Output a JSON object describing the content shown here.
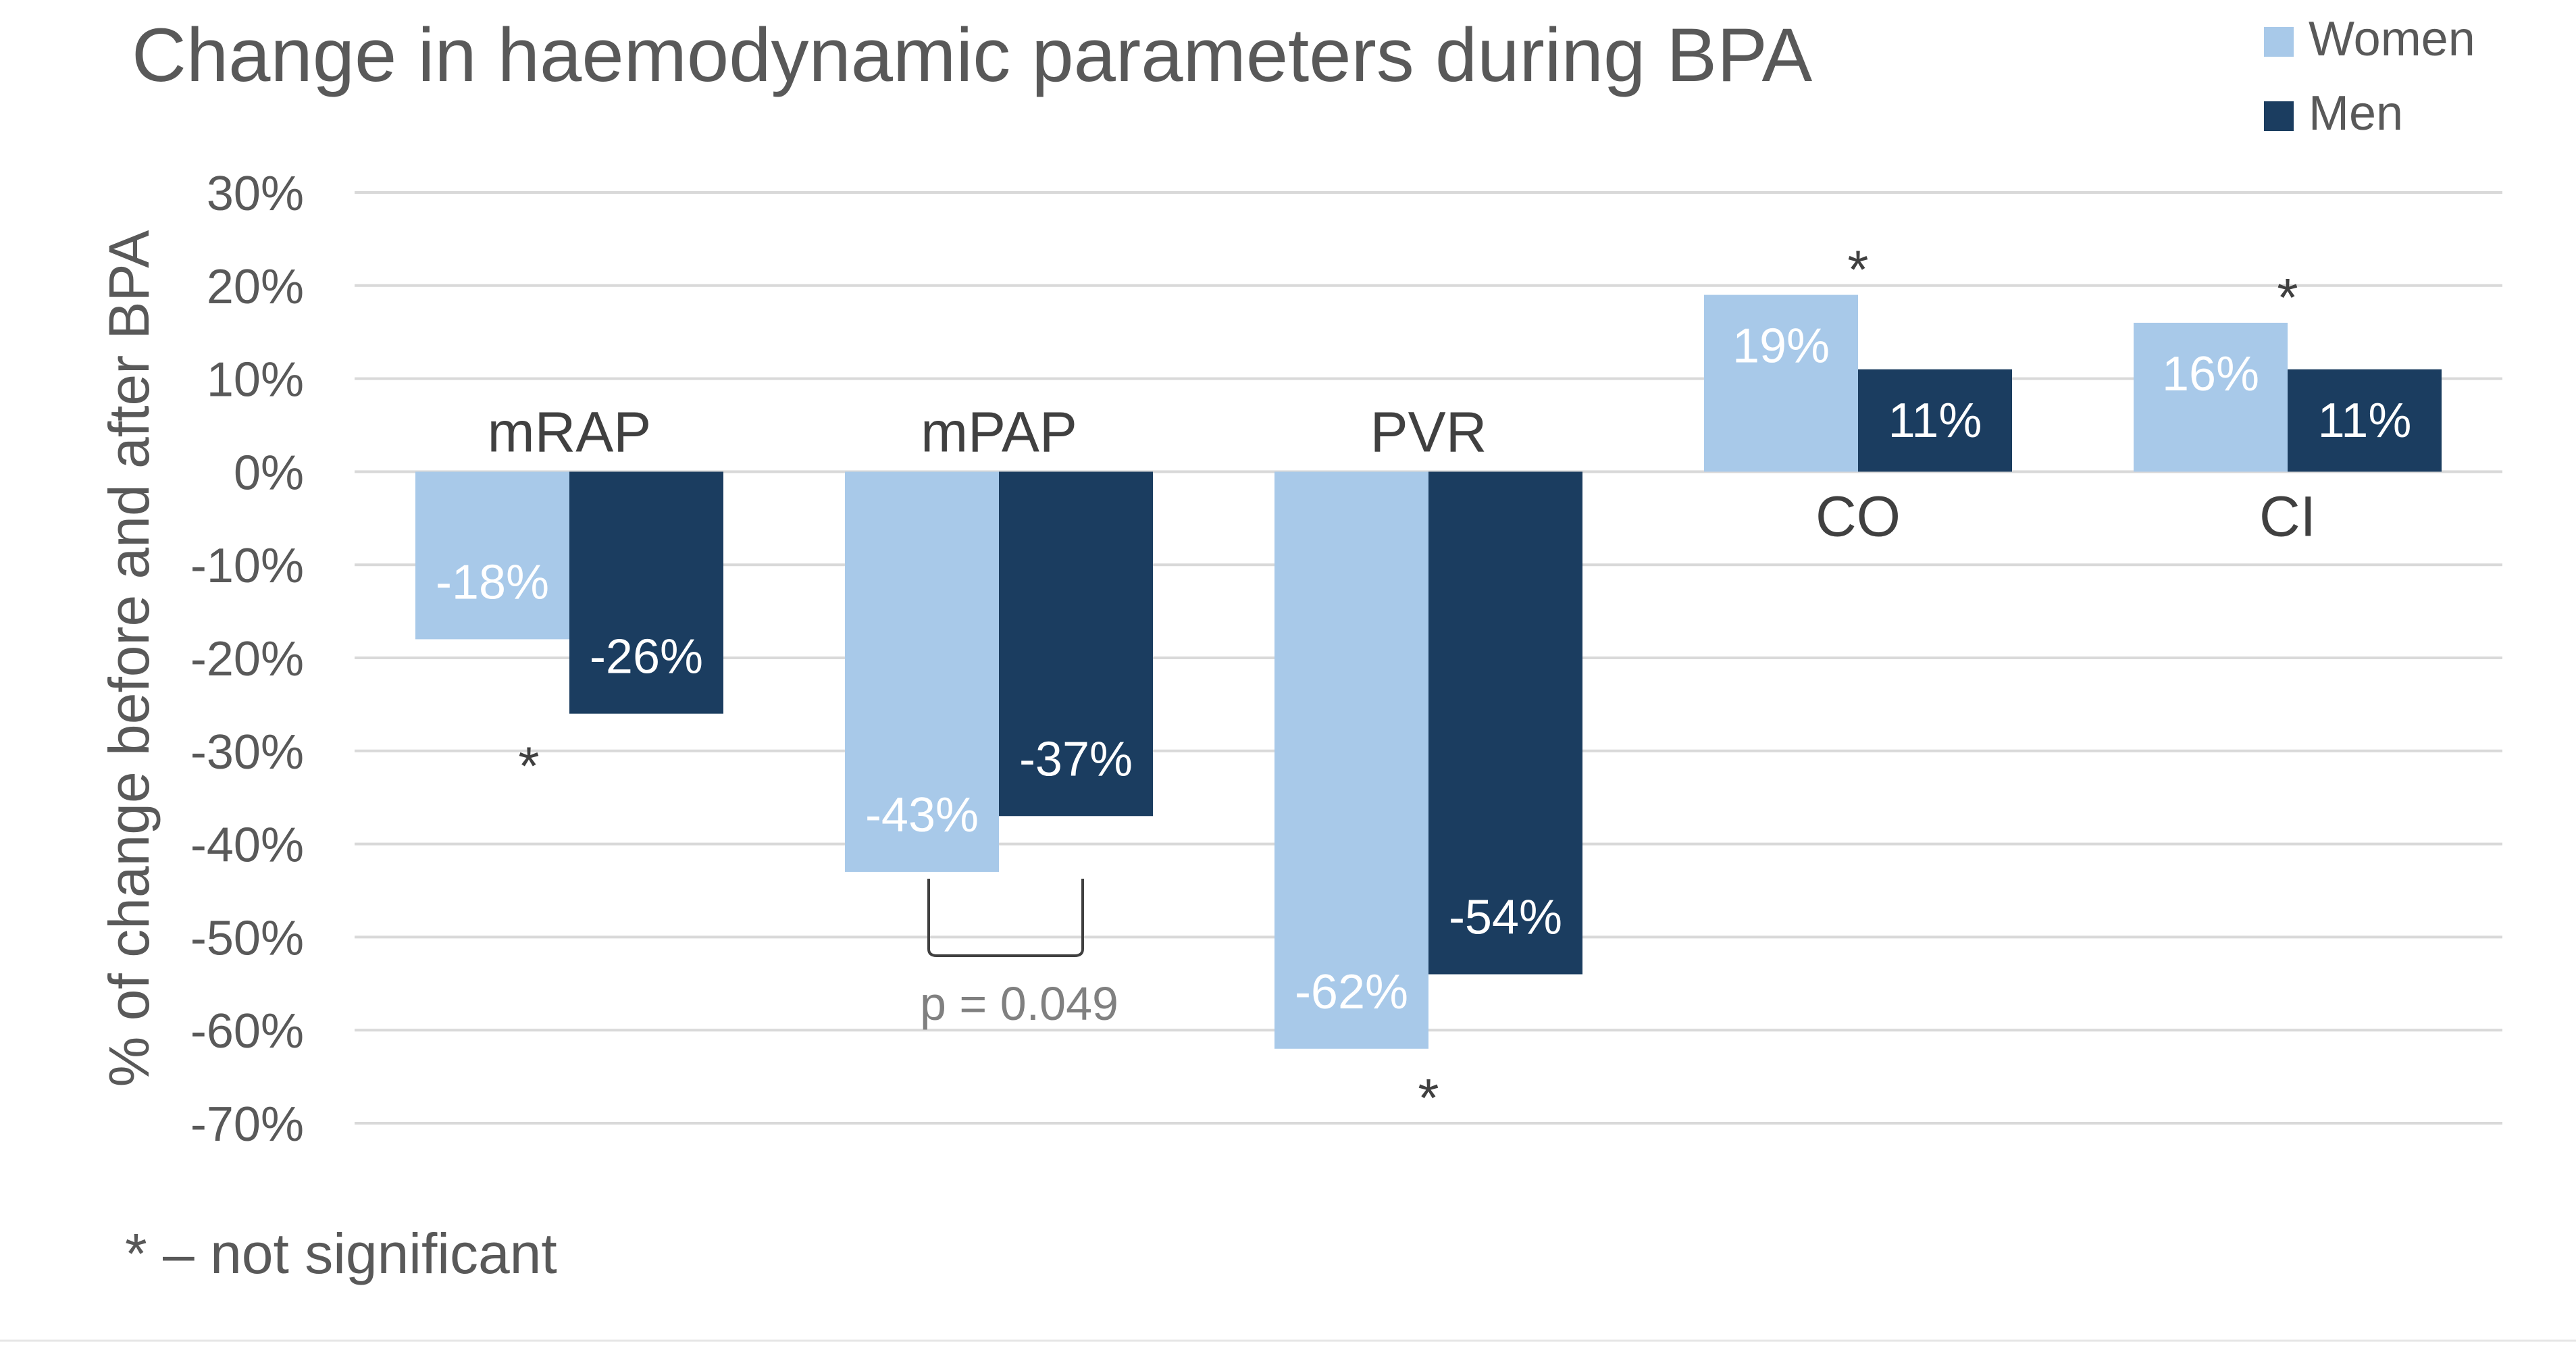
{
  "chart_data": {
    "type": "bar",
    "title": "Change in haemodynamic parameters during BPA",
    "ylabel": "% of change before and after BPA",
    "xlabel": "",
    "ylim": [
      -70,
      30
    ],
    "yticks": [
      30,
      20,
      10,
      0,
      -10,
      -20,
      -30,
      -40,
      -50,
      -60,
      -70
    ],
    "ytick_labels": [
      "30%",
      "20%",
      "10%",
      "0%",
      "-10%",
      "-20%",
      "-30%",
      "-40%",
      "-50%",
      "-60%",
      "-70%"
    ],
    "grid": true,
    "legend_position": "top-right",
    "categories": [
      "mRAP",
      "mPAP",
      "PVR",
      "CO",
      "CI"
    ],
    "series": [
      {
        "name": "Women",
        "color": "#a8c9e9",
        "label_color": "#ffffff",
        "values": [
          -18,
          -43,
          -62,
          19,
          16
        ],
        "labels": [
          "-18%",
          "-43%",
          "-62%",
          "19%",
          "16%"
        ]
      },
      {
        "name": "Men",
        "color": "#1b3d60",
        "label_color": "#ffffff",
        "values": [
          -26,
          -37,
          -54,
          11,
          11
        ],
        "labels": [
          "-26%",
          "-37%",
          "-54%",
          "11%",
          "11%"
        ]
      }
    ],
    "annotations": {
      "asterisk": "*",
      "asterisk_categories": [
        "mRAP",
        "PVR",
        "CO",
        "CI"
      ],
      "pvalue_text": "p = 0.049",
      "pvalue_category": "mPAP",
      "footnote": "* – not significant"
    }
  }
}
